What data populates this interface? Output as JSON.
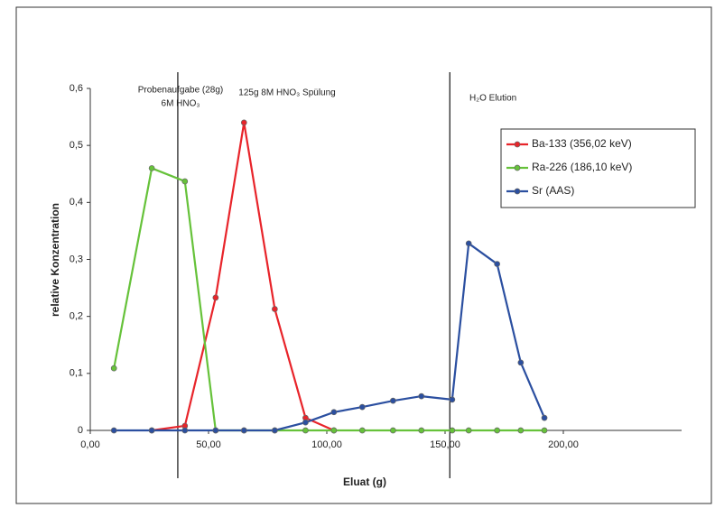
{
  "chart_data": {
    "type": "line",
    "x_label": "Eluat (g)",
    "y_label": "relative Konzentration",
    "x": [
      10,
      26,
      40,
      53,
      65,
      78,
      91,
      103,
      115,
      128,
      140,
      153,
      160,
      172,
      182,
      192
    ],
    "series": [
      {
        "name": "Ba-133 (356,02 keV)",
        "color": "#e8242a",
        "values": [
          null,
          0,
          0.008,
          0.233,
          0.54,
          0.213,
          0.022,
          0,
          null,
          null,
          null,
          null,
          null,
          null,
          null,
          null
        ]
      },
      {
        "name": "Ra-226 (186,10 keV)",
        "color": "#66c23a",
        "values": [
          0.109,
          0.46,
          0.437,
          0,
          0,
          0,
          0,
          0,
          0,
          0,
          0,
          0,
          0,
          0,
          0,
          0
        ]
      },
      {
        "name": "Sr (AAS)",
        "color": "#2b4fa0",
        "values": [
          0,
          0,
          0,
          0,
          0,
          0,
          0.014,
          0.032,
          0.041,
          0.052,
          0.06,
          0.054,
          0.328,
          0.292,
          0.119,
          0.022
        ]
      }
    ],
    "xlim": [
      0,
      250
    ],
    "xticks": [
      {
        "value": 0,
        "label": "0,00"
      },
      {
        "value": 50,
        "label": "50,00"
      },
      {
        "value": 100,
        "label": "100,00"
      },
      {
        "value": 150,
        "label": "150,00"
      },
      {
        "value": 200,
        "label": "200,00"
      }
    ],
    "ylim": [
      0,
      0.6
    ],
    "yticks": [
      0,
      {
        "value": 0.1,
        "label": "0,1"
      },
      {
        "value": 0.2,
        "label": "0,2"
      },
      {
        "value": 0.3,
        "label": "0,3"
      },
      {
        "value": 0.4,
        "label": "0,4"
      },
      {
        "value": 0.5,
        "label": "0,5"
      },
      {
        "value": 0.6,
        "label": "0,6"
      }
    ],
    "vlines": [
      37,
      152
    ],
    "annotations": [
      "Probenaufgabe (28g)",
      "6M HNO₃",
      "125g 8M HNO₃ Spülung",
      "H₂O Elution"
    ],
    "legend": "right",
    "grid": false
  }
}
